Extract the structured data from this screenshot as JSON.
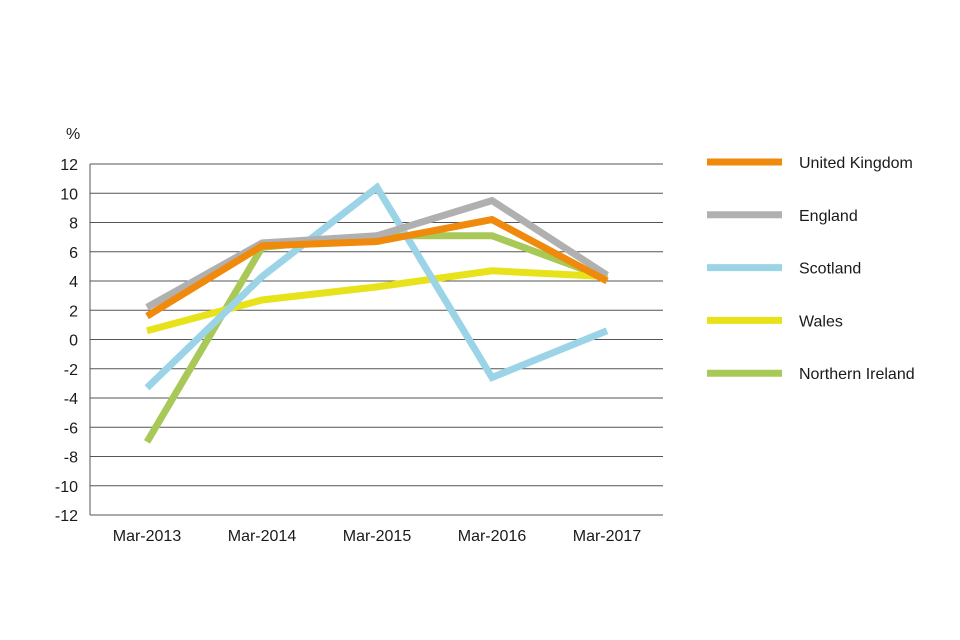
{
  "chart_data": {
    "type": "line",
    "title": "",
    "xlabel": "",
    "ylabel": "%",
    "categories": [
      "Mar-2013",
      "Mar-2014",
      "Mar-2015",
      "Mar-2016",
      "Mar-2017"
    ],
    "ylim": [
      -12,
      12
    ],
    "yticks": [
      12,
      10,
      8,
      6,
      4,
      2,
      0,
      -2,
      -4,
      -6,
      -8,
      -10,
      -12
    ],
    "grid": true,
    "legend_position": "right",
    "series": [
      {
        "name": "Northern Ireland",
        "color": "#a8c957",
        "values": [
          -7.0,
          6.3,
          7.1,
          7.1,
          4.2
        ]
      },
      {
        "name": "Wales",
        "color": "#e8e21a",
        "values": [
          0.6,
          2.7,
          3.6,
          4.7,
          4.3
        ]
      },
      {
        "name": "Scotland",
        "color": "#9ad4e6",
        "values": [
          -3.3,
          4.3,
          10.4,
          -2.6,
          0.6
        ]
      },
      {
        "name": "England",
        "color": "#b0b0b0",
        "values": [
          2.2,
          6.6,
          7.1,
          9.5,
          4.4
        ]
      },
      {
        "name": "United Kingdom",
        "color": "#f08a0c",
        "values": [
          1.6,
          6.4,
          6.7,
          8.2,
          4.0
        ]
      }
    ],
    "legend_order": [
      "United Kingdom",
      "England",
      "Scotland",
      "Wales",
      "Northern Ireland"
    ]
  }
}
